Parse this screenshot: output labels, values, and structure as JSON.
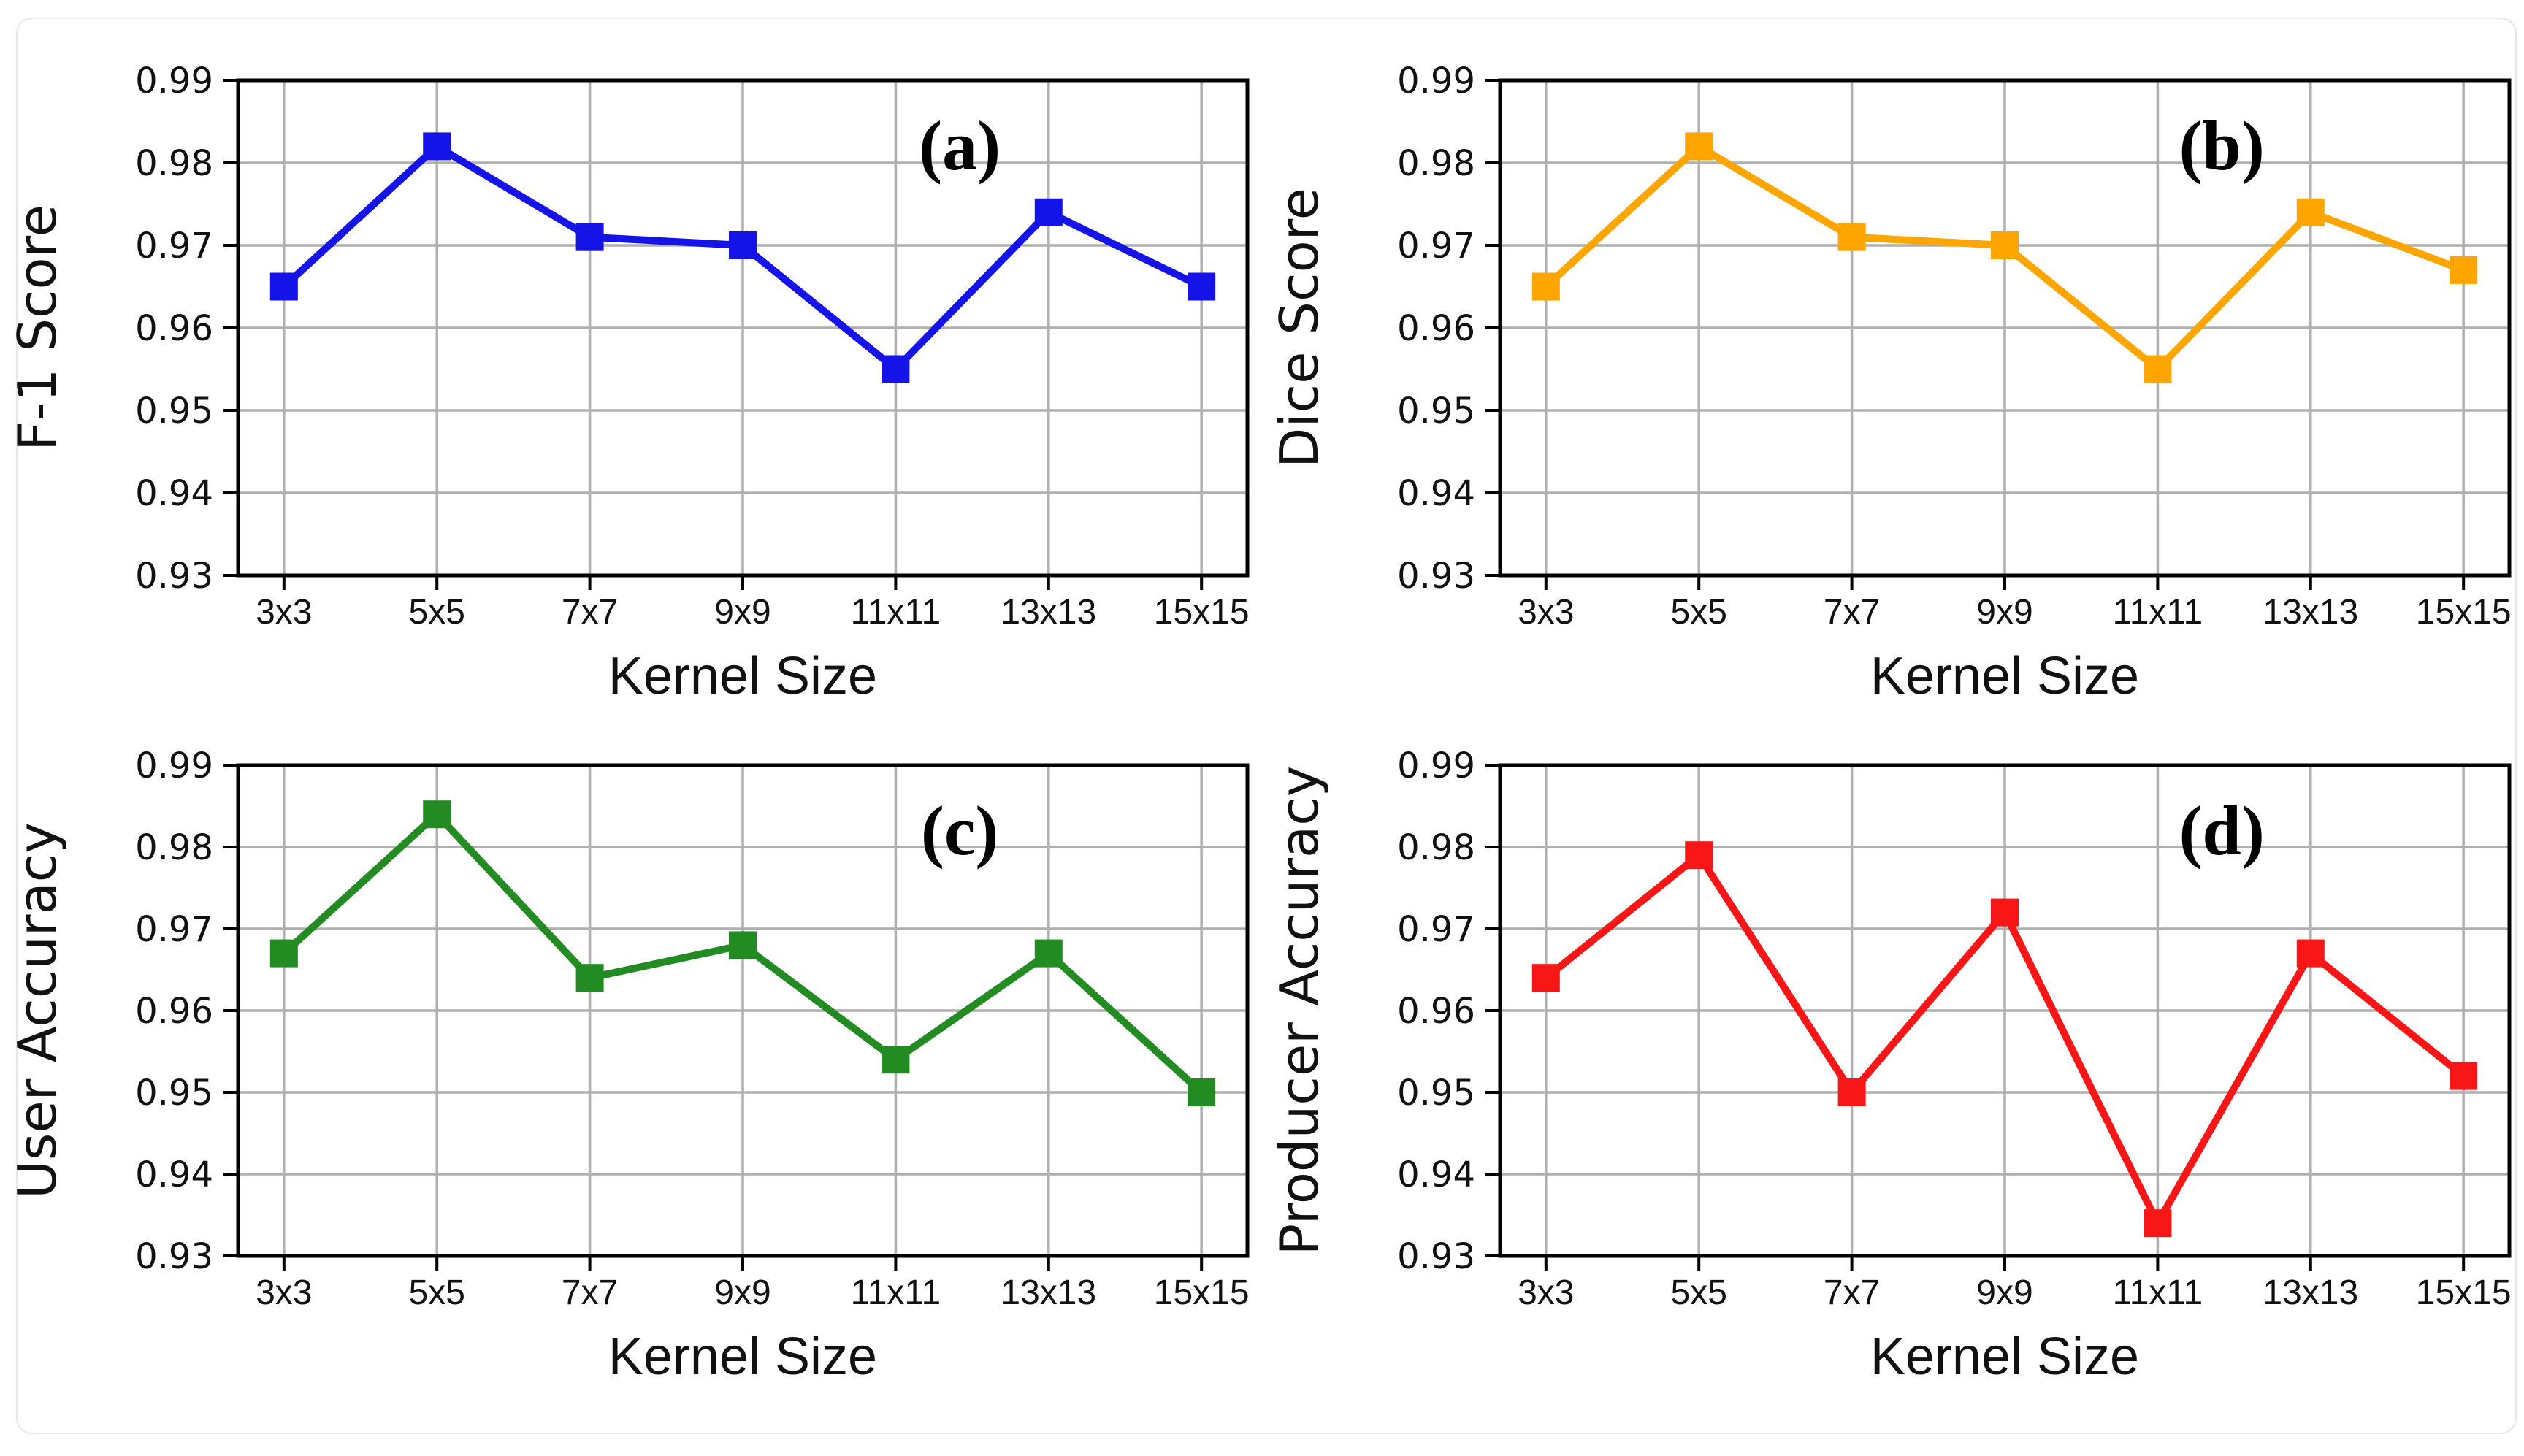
{
  "figure": {
    "background": "#ffffff",
    "frame_border_color": "#e7e7e7",
    "grid_color": "#b0b0b0",
    "spine_color": "#000000",
    "tick_text_color": "#111111",
    "label_text_color": "#111111"
  },
  "chart_data": [
    {
      "type": "line",
      "panel_label": "(a)",
      "ylabel": "F-1 Score",
      "xlabel": "Kernel Size",
      "categories": [
        "3x3",
        "5x5",
        "7x7",
        "9x9",
        "11x11",
        "13x13",
        "15x15"
      ],
      "values": [
        0.965,
        0.982,
        0.971,
        0.97,
        0.955,
        0.974,
        0.965
      ],
      "color": "#1414E8",
      "ylim": [
        0.93,
        0.99
      ],
      "ytick_step": 0.01,
      "ytick_labels": [
        "0.99",
        "0.98",
        "0.97",
        "0.96",
        "0.95",
        "0.94",
        "0.93"
      ],
      "grid": true,
      "marker": "square",
      "legend": "none"
    },
    {
      "type": "line",
      "panel_label": "(b)",
      "ylabel": "Dice Score",
      "xlabel": "Kernel Size",
      "categories": [
        "3x3",
        "5x5",
        "7x7",
        "9x9",
        "11x11",
        "13x13",
        "15x15"
      ],
      "values": [
        0.965,
        0.982,
        0.971,
        0.97,
        0.955,
        0.974,
        0.967
      ],
      "color": "#FFA500",
      "ylim": [
        0.93,
        0.99
      ],
      "ytick_step": 0.01,
      "ytick_labels": [
        "0.99",
        "0.98",
        "0.97",
        "0.96",
        "0.95",
        "0.94",
        "0.93"
      ],
      "grid": true,
      "marker": "square",
      "legend": "none"
    },
    {
      "type": "line",
      "panel_label": "(c)",
      "ylabel": "User Accuracy",
      "xlabel": "Kernel Size",
      "categories": [
        "3x3",
        "5x5",
        "7x7",
        "9x9",
        "11x11",
        "13x13",
        "15x15"
      ],
      "values": [
        0.967,
        0.984,
        0.964,
        0.968,
        0.954,
        0.967,
        0.95
      ],
      "color": "#228B22",
      "ylim": [
        0.93,
        0.99
      ],
      "ytick_step": 0.01,
      "ytick_labels": [
        "0.99",
        "0.98",
        "0.97",
        "0.96",
        "0.95",
        "0.94",
        "0.93"
      ],
      "grid": true,
      "marker": "square",
      "legend": "none"
    },
    {
      "type": "line",
      "panel_label": "(d)",
      "ylabel": "Producer Accuracy",
      "xlabel": "Kernel Size",
      "categories": [
        "3x3",
        "5x5",
        "7x7",
        "9x9",
        "11x11",
        "13x13",
        "15x15"
      ],
      "values": [
        0.964,
        0.979,
        0.95,
        0.972,
        0.934,
        0.967,
        0.952
      ],
      "color": "#F91616",
      "ylim": [
        0.93,
        0.99
      ],
      "ytick_step": 0.01,
      "ytick_labels": [
        "0.99",
        "0.98",
        "0.97",
        "0.96",
        "0.95",
        "0.94",
        "0.93"
      ],
      "grid": true,
      "marker": "square",
      "legend": "none"
    }
  ]
}
